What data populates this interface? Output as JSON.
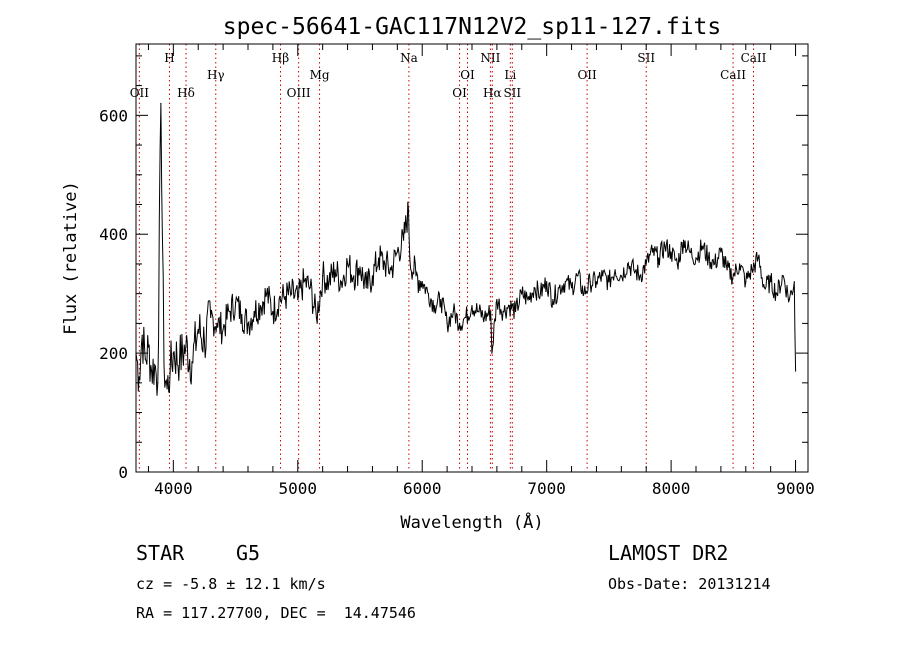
{
  "chart_data": {
    "type": "line",
    "title": "spec-56641-GAC117N12V2_sp11-127.fits",
    "xlabel": "Wavelength (Å)",
    "ylabel": "Flux (relative)",
    "xlim": [
      3700,
      9100
    ],
    "ylim": [
      0,
      720
    ],
    "xticks": [
      4000,
      5000,
      6000,
      7000,
      8000,
      9000
    ],
    "xtick_labels": [
      "4000",
      "5000",
      "6000",
      "7000",
      "8000",
      "9000"
    ],
    "yticks": [
      0,
      200,
      400,
      600
    ],
    "ytick_labels": [
      "0",
      "200",
      "400",
      "600"
    ],
    "grid": false,
    "line_color": "#000000",
    "marker_color": "#cc0000",
    "series": [
      {
        "values_x": [
          3700,
          3725,
          3750,
          3775,
          3800,
          3825,
          3850,
          3875,
          3900,
          3925,
          3950,
          3975,
          4000,
          4050,
          4100,
          4150,
          4200,
          4250,
          4300,
          4350,
          4400,
          4450,
          4500,
          4550,
          4600,
          4650,
          4700,
          4750,
          4800,
          4850,
          4900,
          4950,
          5000,
          5050,
          5100,
          5150,
          5200,
          5250,
          5300,
          5350,
          5400,
          5450,
          5500,
          5550,
          5600,
          5650,
          5700,
          5750,
          5800,
          5850,
          5890,
          5900,
          5950,
          6000,
          6050,
          6100,
          6150,
          6200,
          6250,
          6300,
          6350,
          6400,
          6450,
          6500,
          6550,
          6560,
          6600,
          6650,
          6700,
          6750,
          6800,
          6850,
          6900,
          6950,
          7000,
          7050,
          7100,
          7150,
          7200,
          7250,
          7300,
          7350,
          7400,
          7450,
          7500,
          7550,
          7600,
          7650,
          7700,
          7750,
          7800,
          7850,
          7900,
          7950,
          8000,
          8050,
          8100,
          8150,
          8200,
          8250,
          8300,
          8350,
          8400,
          8450,
          8500,
          8550,
          8600,
          8650,
          8700,
          8750,
          8800,
          8850,
          8900,
          8950,
          8990,
          9000
        ],
        "values_y": [
          200,
          160,
          230,
          190,
          210,
          170,
          180,
          150,
          620,
          180,
          140,
          170,
          200,
          190,
          210,
          185,
          240,
          220,
          260,
          250,
          240,
          270,
          285,
          265,
          250,
          270,
          280,
          300,
          270,
          290,
          295,
          300,
          290,
          320,
          310,
          260,
          330,
          320,
          340,
          320,
          350,
          330,
          345,
          310,
          330,
          360,
          350,
          340,
          370,
          390,
          440,
          360,
          330,
          320,
          300,
          280,
          290,
          250,
          270,
          250,
          260,
          280,
          270,
          260,
          270,
          200,
          290,
          270,
          280,
          270,
          300,
          290,
          310,
          300,
          320,
          290,
          310,
          320,
          310,
          330,
          300,
          320,
          320,
          330,
          320,
          340,
          330,
          350,
          340,
          330,
          350,
          370,
          360,
          380,
          370,
          350,
          390,
          370,
          360,
          380,
          360,
          350,
          370,
          340,
          330,
          350,
          320,
          340,
          360,
          310,
          320,
          300,
          330,
          290,
          320,
          170
        ]
      }
    ],
    "lines": [
      {
        "label": "OII",
        "wavelength": 3727,
        "row": 3
      },
      {
        "label": "H",
        "wavelength": 3969,
        "row": 1
      },
      {
        "label": "Hδ",
        "wavelength": 4102,
        "row": 3
      },
      {
        "label": "Hγ",
        "wavelength": 4341,
        "row": 2
      },
      {
        "label": "Hβ",
        "wavelength": 4861,
        "row": 1
      },
      {
        "label": "OIII",
        "wavelength": 5007,
        "row": 3
      },
      {
        "label": "Mg",
        "wavelength": 5175,
        "row": 2
      },
      {
        "label": "Na",
        "wavelength": 5893,
        "row": 1
      },
      {
        "label": "OI",
        "wavelength": 6300,
        "row": 3
      },
      {
        "label": "OI",
        "wavelength": 6364,
        "row": 2
      },
      {
        "label": "NII",
        "wavelength": 6548,
        "row": 1
      },
      {
        "label": "Hα",
        "wavelength": 6563,
        "row": 3
      },
      {
        "label": "Li",
        "wavelength": 6708,
        "row": 2
      },
      {
        "label": "SII",
        "wavelength": 6724,
        "row": 3
      },
      {
        "label": "OII",
        "wavelength": 7325,
        "row": 2
      },
      {
        "label": "SII",
        "wavelength": 7800,
        "row": 1
      },
      {
        "label": "CaII",
        "wavelength": 8498,
        "row": 2
      },
      {
        "label": "CaII",
        "wavelength": 8662,
        "row": 1
      }
    ]
  },
  "info": {
    "object_class": "STAR",
    "subclass": "G5",
    "survey": "LAMOST DR2",
    "redshift": "cz = -5.8 ± 12.1 km/s",
    "obs_date": "Obs-Date: 20131214",
    "coords": "RA = 117.27700, DEC =  14.47546"
  }
}
